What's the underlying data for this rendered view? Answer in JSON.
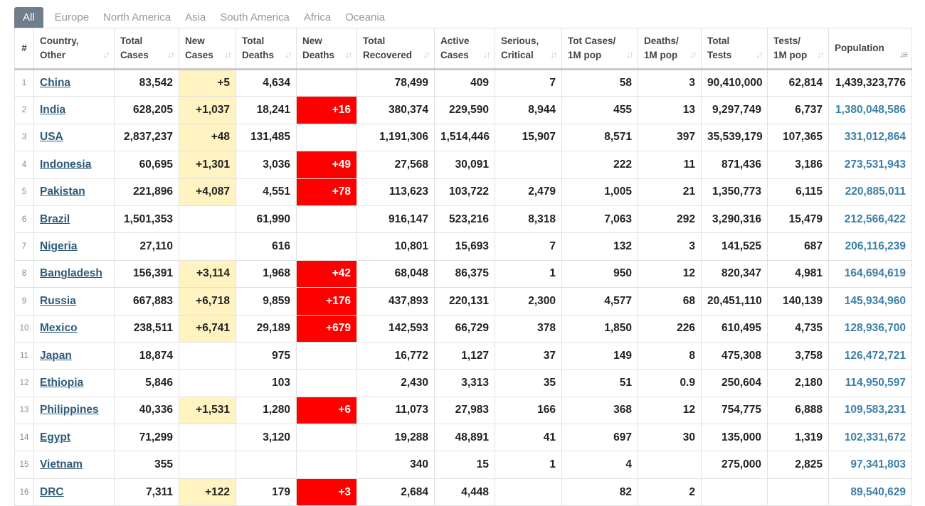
{
  "tabs": [
    "All",
    "Europe",
    "North America",
    "Asia",
    "South America",
    "Africa",
    "Oceania"
  ],
  "active_tab": "All",
  "columns": [
    {
      "l1": "#",
      "l2": ""
    },
    {
      "l1": "Country,",
      "l2": "Other"
    },
    {
      "l1": "Total",
      "l2": "Cases"
    },
    {
      "l1": "New",
      "l2": "Cases"
    },
    {
      "l1": "Total",
      "l2": "Deaths"
    },
    {
      "l1": "New",
      "l2": "Deaths"
    },
    {
      "l1": "Total",
      "l2": "Recovered"
    },
    {
      "l1": "Active",
      "l2": "Cases"
    },
    {
      "l1": "Serious,",
      "l2": "Critical"
    },
    {
      "l1": "Tot Cases/",
      "l2": "1M pop"
    },
    {
      "l1": "Deaths/",
      "l2": "1M pop"
    },
    {
      "l1": "Total",
      "l2": "Tests"
    },
    {
      "l1": "Tests/",
      "l2": "1M pop"
    },
    {
      "l1": "Population",
      "l2": ""
    }
  ],
  "icons": {
    "sort": "sort-arrows-icon",
    "sort_active": "sort-desc-icon"
  },
  "colors": {
    "new_cases_bg": "#fff3c1",
    "new_deaths_bg": "#ff0000",
    "population_link": "#3c7fa8",
    "country_link": "#2e5b79",
    "tab_active_bg": "#707d8a"
  },
  "rows": [
    [
      "1",
      "China",
      "83,542",
      "+5",
      "4,634",
      "",
      "78,499",
      "409",
      "7",
      "58",
      "3",
      "90,410,000",
      "62,814",
      "1,439,323,776"
    ],
    [
      "2",
      "India",
      "628,205",
      "+1,037",
      "18,241",
      "+16",
      "380,374",
      "229,590",
      "8,944",
      "455",
      "13",
      "9,297,749",
      "6,737",
      "1,380,048,586"
    ],
    [
      "3",
      "USA",
      "2,837,237",
      "+48",
      "131,485",
      "",
      "1,191,306",
      "1,514,446",
      "15,907",
      "8,571",
      "397",
      "35,539,179",
      "107,365",
      "331,012,864"
    ],
    [
      "4",
      "Indonesia",
      "60,695",
      "+1,301",
      "3,036",
      "+49",
      "27,568",
      "30,091",
      "",
      "222",
      "11",
      "871,436",
      "3,186",
      "273,531,943"
    ],
    [
      "5",
      "Pakistan",
      "221,896",
      "+4,087",
      "4,551",
      "+78",
      "113,623",
      "103,722",
      "2,479",
      "1,005",
      "21",
      "1,350,773",
      "6,115",
      "220,885,011"
    ],
    [
      "6",
      "Brazil",
      "1,501,353",
      "",
      "61,990",
      "",
      "916,147",
      "523,216",
      "8,318",
      "7,063",
      "292",
      "3,290,316",
      "15,479",
      "212,566,422"
    ],
    [
      "7",
      "Nigeria",
      "27,110",
      "",
      "616",
      "",
      "10,801",
      "15,693",
      "7",
      "132",
      "3",
      "141,525",
      "687",
      "206,116,239"
    ],
    [
      "8",
      "Bangladesh",
      "156,391",
      "+3,114",
      "1,968",
      "+42",
      "68,048",
      "86,375",
      "1",
      "950",
      "12",
      "820,347",
      "4,981",
      "164,694,619"
    ],
    [
      "9",
      "Russia",
      "667,883",
      "+6,718",
      "9,859",
      "+176",
      "437,893",
      "220,131",
      "2,300",
      "4,577",
      "68",
      "20,451,110",
      "140,139",
      "145,934,960"
    ],
    [
      "10",
      "Mexico",
      "238,511",
      "+6,741",
      "29,189",
      "+679",
      "142,593",
      "66,729",
      "378",
      "1,850",
      "226",
      "610,495",
      "4,735",
      "128,936,700"
    ],
    [
      "11",
      "Japan",
      "18,874",
      "",
      "975",
      "",
      "16,772",
      "1,127",
      "37",
      "149",
      "8",
      "475,308",
      "3,758",
      "126,472,721"
    ],
    [
      "12",
      "Ethiopia",
      "5,846",
      "",
      "103",
      "",
      "2,430",
      "3,313",
      "35",
      "51",
      "0.9",
      "250,604",
      "2,180",
      "114,950,597"
    ],
    [
      "13",
      "Philippines",
      "40,336",
      "+1,531",
      "1,280",
      "+6",
      "11,073",
      "27,983",
      "166",
      "368",
      "12",
      "754,775",
      "6,888",
      "109,583,231"
    ],
    [
      "14",
      "Egypt",
      "71,299",
      "",
      "3,120",
      "",
      "19,288",
      "48,891",
      "41",
      "697",
      "30",
      "135,000",
      "1,319",
      "102,331,672"
    ],
    [
      "15",
      "Vietnam",
      "355",
      "",
      "",
      "",
      "340",
      "15",
      "1",
      "4",
      "",
      "275,000",
      "2,825",
      "97,341,803"
    ],
    [
      "16",
      "DRC",
      "7,311",
      "+122",
      "179",
      "+3",
      "2,684",
      "4,448",
      "",
      "82",
      "2",
      "",
      "",
      "89,540,629"
    ]
  ]
}
